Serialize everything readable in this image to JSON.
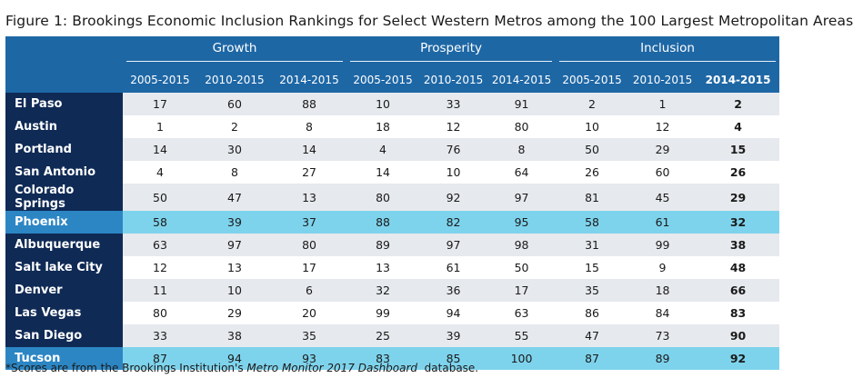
{
  "title": "Figure 1: Brookings Economic Inclusion Rankings for Select Western Metros among the 100 Largest Metropolitan Areas",
  "groups": [
    "Growth",
    "Prosperity",
    "Inclusion"
  ],
  "periods": [
    "2005-2015",
    "2010-2015",
    "2014-2015",
    "2005-2015",
    "2010-2015",
    "2014-2015",
    "2005-2015",
    "2010-2015",
    "2014-2015"
  ],
  "colors": {
    "header": "#1e67a5",
    "metro_bg": "#0f2a55",
    "highlight": "#7ed3ec",
    "highlight_metro": "#2c86c4",
    "alt_row": "#e6e9ed"
  },
  "rows": [
    {
      "metro": "El Paso",
      "highlight": false,
      "values": [
        "17",
        "60",
        "88",
        "10",
        "33",
        "91",
        "2",
        "1",
        "2"
      ]
    },
    {
      "metro": "Austin",
      "highlight": false,
      "values": [
        "1",
        "2",
        "8",
        "18",
        "12",
        "80",
        "10",
        "12",
        "4"
      ]
    },
    {
      "metro": "Portland",
      "highlight": false,
      "values": [
        "14",
        "30",
        "14",
        "4",
        "76",
        "8",
        "50",
        "29",
        "15"
      ]
    },
    {
      "metro": "San Antonio",
      "highlight": false,
      "values": [
        "4",
        "8",
        "27",
        "14",
        "10",
        "64",
        "26",
        "60",
        "26"
      ]
    },
    {
      "metro": "Colorado Springs",
      "highlight": false,
      "values": [
        "50",
        "47",
        "13",
        "80",
        "92",
        "97",
        "81",
        "45",
        "29"
      ]
    },
    {
      "metro": "Phoenix",
      "highlight": true,
      "values": [
        "58",
        "39",
        "37",
        "88",
        "82",
        "95",
        "58",
        "61",
        "32"
      ]
    },
    {
      "metro": "Albuquerque",
      "highlight": false,
      "values": [
        "63",
        "97",
        "80",
        "89",
        "97",
        "98",
        "31",
        "99",
        "38"
      ]
    },
    {
      "metro": "Salt lake City",
      "highlight": false,
      "values": [
        "12",
        "13",
        "17",
        "13",
        "61",
        "50",
        "15",
        "9",
        "48"
      ]
    },
    {
      "metro": "Denver",
      "highlight": false,
      "values": [
        "11",
        "10",
        "6",
        "32",
        "36",
        "17",
        "35",
        "18",
        "66"
      ]
    },
    {
      "metro": "Las Vegas",
      "highlight": false,
      "values": [
        "80",
        "29",
        "20",
        "99",
        "94",
        "63",
        "86",
        "84",
        "83"
      ]
    },
    {
      "metro": "San Diego",
      "highlight": false,
      "values": [
        "33",
        "38",
        "35",
        "25",
        "39",
        "55",
        "47",
        "73",
        "90"
      ]
    },
    {
      "metro": "Tucson",
      "highlight": true,
      "values": [
        "87",
        "94",
        "93",
        "83",
        "85",
        "100",
        "87",
        "89",
        "92"
      ]
    }
  ],
  "footnote": {
    "prefix": "*Scores are from the Brookings Institution's ",
    "source": "Metro Monitor 2017 Dashboard",
    "suffix": "  database."
  }
}
